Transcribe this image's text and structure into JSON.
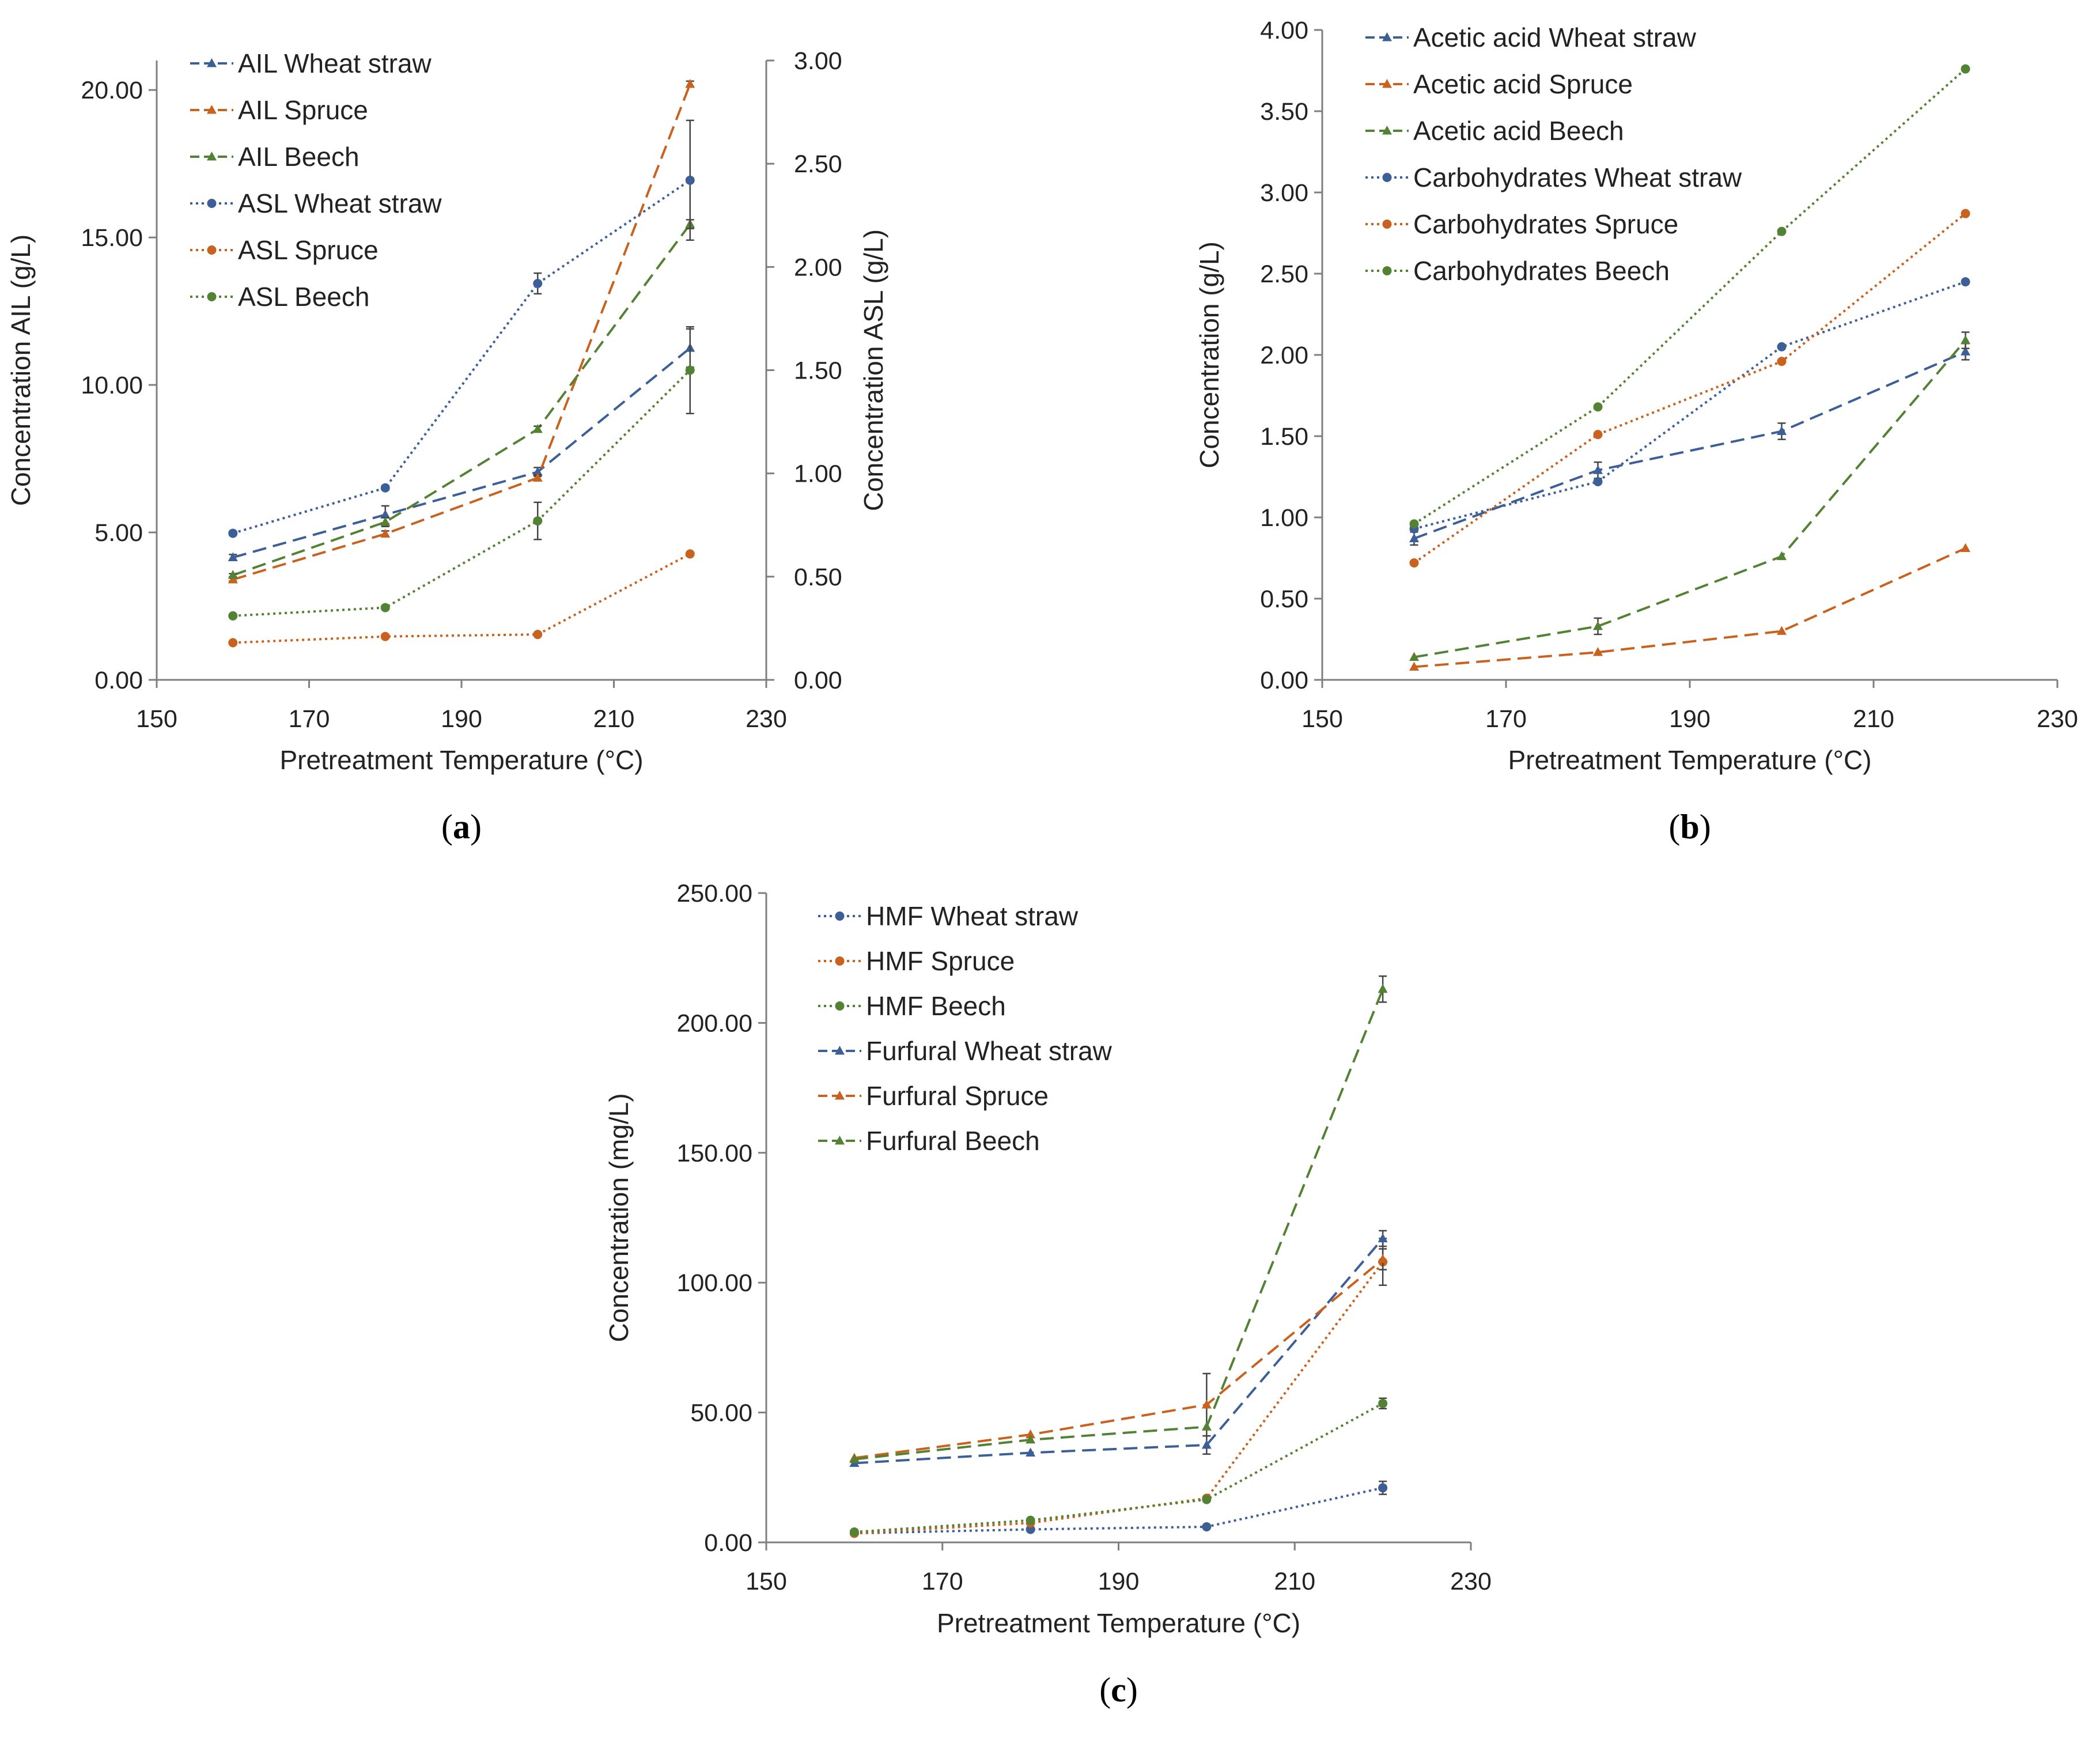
{
  "colors": {
    "blue": "#3D5F98",
    "orange": "#C8621E",
    "green": "#548234",
    "axis": "#7F7F7F",
    "text": "#222222"
  },
  "chart_data": [
    {
      "panel": "a",
      "type": "line",
      "xlabel": "Pretreatment Temperature (°C)",
      "ylabel": "Concentration AIL  (g/L)",
      "y2label": "Concentration ASL (g/L)",
      "xlim": [
        150,
        230
      ],
      "ylim": [
        0,
        21
      ],
      "y2lim": [
        0,
        3
      ],
      "xticks": [
        "150",
        "170",
        "190",
        "210",
        "230"
      ],
      "yticks": [
        "0.00",
        "5.00",
        "10.00",
        "15.00",
        "20.00"
      ],
      "y2ticks": [
        "0.00",
        "0.50",
        "1.00",
        "1.50",
        "2.00",
        "2.50",
        "3.00"
      ],
      "series": [
        {
          "name": "AIL Wheat straw",
          "axis": "left",
          "color": "blue",
          "dash": "dashed",
          "marker": "triangle",
          "x": [
            160,
            180,
            200,
            220
          ],
          "y": [
            4.15,
            5.6,
            7.05,
            11.25
          ],
          "err": [
            0.1,
            0.3,
            0.15,
            0.65
          ]
        },
        {
          "name": "AIL Spruce",
          "axis": "left",
          "color": "orange",
          "dash": "dashed",
          "marker": "triangle",
          "x": [
            160,
            180,
            200,
            220
          ],
          "y": [
            3.4,
            4.95,
            6.85,
            20.2
          ],
          "err": [
            0.05,
            0.1,
            0.1,
            0.1
          ]
        },
        {
          "name": "AIL Beech",
          "axis": "left",
          "color": "green",
          "dash": "dashed",
          "marker": "triangle",
          "x": [
            160,
            180,
            200,
            220
          ],
          "y": [
            3.55,
            5.35,
            8.5,
            15.45
          ],
          "err": [
            0.05,
            0.15,
            0.1,
            0.15
          ]
        },
        {
          "name": "ASL Wheat straw",
          "axis": "right",
          "color": "blue",
          "dash": "dotted",
          "marker": "circle",
          "x": [
            160,
            180,
            200,
            220
          ],
          "y": [
            0.71,
            0.93,
            1.92,
            2.42
          ],
          "err": [
            0.01,
            0.01,
            0.05,
            0.29
          ]
        },
        {
          "name": "ASL Spruce",
          "axis": "right",
          "color": "orange",
          "dash": "dotted",
          "marker": "circle",
          "x": [
            160,
            180,
            200,
            220
          ],
          "y": [
            0.18,
            0.21,
            0.22,
            0.61
          ],
          "err": [
            0.0,
            0.0,
            0.0,
            0.0
          ]
        },
        {
          "name": "ASL Beech",
          "axis": "right",
          "color": "green",
          "dash": "dotted",
          "marker": "circle",
          "x": [
            160,
            180,
            200,
            220
          ],
          "y": [
            0.31,
            0.35,
            0.77,
            1.5
          ],
          "err": [
            0.0,
            0.01,
            0.09,
            0.21
          ]
        }
      ]
    },
    {
      "panel": "b",
      "type": "line",
      "xlabel": "Pretreatment Temperature (°C)",
      "ylabel": "Concentration (g/L)",
      "xlim": [
        150,
        230
      ],
      "ylim": [
        0,
        4
      ],
      "xticks": [
        "150",
        "170",
        "190",
        "210",
        "230"
      ],
      "yticks": [
        "0.00",
        "0.50",
        "1.00",
        "1.50",
        "2.00",
        "2.50",
        "3.00",
        "3.50",
        "4.00"
      ],
      "series": [
        {
          "name": "Acetic acid Wheat straw",
          "color": "blue",
          "dash": "dashed",
          "marker": "triangle",
          "x": [
            160,
            180,
            200,
            220
          ],
          "y": [
            0.87,
            1.29,
            1.53,
            2.02
          ],
          "err": [
            0.04,
            0.05,
            0.05,
            0.05
          ]
        },
        {
          "name": "Acetic acid Spruce",
          "color": "orange",
          "dash": "dashed",
          "marker": "triangle",
          "x": [
            160,
            180,
            200,
            220
          ],
          "y": [
            0.08,
            0.17,
            0.3,
            0.81
          ],
          "err": [
            0.0,
            0.0,
            0.0,
            0.0
          ]
        },
        {
          "name": "Acetic acid Beech",
          "color": "green",
          "dash": "dashed",
          "marker": "triangle",
          "x": [
            160,
            180,
            200,
            220
          ],
          "y": [
            0.14,
            0.33,
            0.76,
            2.09
          ],
          "err": [
            0.0,
            0.05,
            0.0,
            0.05
          ]
        },
        {
          "name": "Carbohydrates Wheat straw",
          "color": "blue",
          "dash": "dotted",
          "marker": "circle",
          "x": [
            160,
            180,
            200,
            220
          ],
          "y": [
            0.93,
            1.22,
            2.05,
            2.45
          ],
          "err": [
            0.0,
            0.0,
            0.0,
            0.0
          ]
        },
        {
          "name": "Carbohydrates Spruce",
          "color": "orange",
          "dash": "dotted",
          "marker": "circle",
          "x": [
            160,
            180,
            200,
            220
          ],
          "y": [
            0.72,
            1.51,
            1.96,
            2.87
          ],
          "err": [
            0.0,
            0.0,
            0.0,
            0.0
          ]
        },
        {
          "name": "Carbohydrates Beech",
          "color": "green",
          "dash": "dotted",
          "marker": "circle",
          "x": [
            160,
            180,
            200,
            220
          ],
          "y": [
            0.96,
            1.68,
            2.76,
            3.76
          ],
          "err": [
            0.0,
            0.0,
            0.0,
            0.0
          ]
        }
      ]
    },
    {
      "panel": "c",
      "type": "line",
      "xlabel": "Pretreatment Temperature (°C)",
      "ylabel": "Concentration (mg/L)",
      "xlim": [
        150,
        230
      ],
      "ylim": [
        0,
        250
      ],
      "xticks": [
        "150",
        "170",
        "190",
        "210",
        "230"
      ],
      "yticks": [
        "0.00",
        "50.00",
        "100.00",
        "150.00",
        "200.00",
        "250.00"
      ],
      "series": [
        {
          "name": "HMF Wheat straw",
          "color": "blue",
          "dash": "dotted",
          "marker": "circle",
          "x": [
            160,
            180,
            200,
            220
          ],
          "y": [
            3.5,
            5.0,
            6.0,
            21.0
          ],
          "err": [
            0.0,
            0.0,
            0.0,
            2.5
          ]
        },
        {
          "name": "HMF Spruce",
          "color": "orange",
          "dash": "dotted",
          "marker": "circle",
          "x": [
            160,
            180,
            200,
            220
          ],
          "y": [
            3.5,
            7.5,
            17.0,
            108.0
          ],
          "err": [
            0.0,
            0.0,
            0.0,
            9.0
          ]
        },
        {
          "name": "HMF Beech",
          "color": "green",
          "dash": "dotted",
          "marker": "circle",
          "x": [
            160,
            180,
            200,
            220
          ],
          "y": [
            4.0,
            8.5,
            16.5,
            53.5
          ],
          "err": [
            0.0,
            0.0,
            0.0,
            2.0
          ]
        },
        {
          "name": "Furfural Wheat straw",
          "color": "blue",
          "dash": "dashed",
          "marker": "triangle",
          "x": [
            160,
            180,
            200,
            220
          ],
          "y": [
            30.5,
            34.5,
            37.5,
            117.0
          ],
          "err": [
            0.0,
            0.0,
            3.5,
            3.0
          ]
        },
        {
          "name": "Furfural Spruce",
          "color": "orange",
          "dash": "dashed",
          "marker": "triangle",
          "x": [
            160,
            180,
            200,
            220
          ],
          "y": [
            32.5,
            41.5,
            53.0,
            109.0
          ],
          "err": [
            0.0,
            0.0,
            12.0,
            4.0
          ]
        },
        {
          "name": "Furfural Beech",
          "color": "green",
          "dash": "dashed",
          "marker": "triangle",
          "x": [
            160,
            180,
            200,
            220
          ],
          "y": [
            32.0,
            39.5,
            44.5,
            213.0
          ],
          "err": [
            0.0,
            0.0,
            0.0,
            5.0
          ]
        }
      ]
    }
  ]
}
